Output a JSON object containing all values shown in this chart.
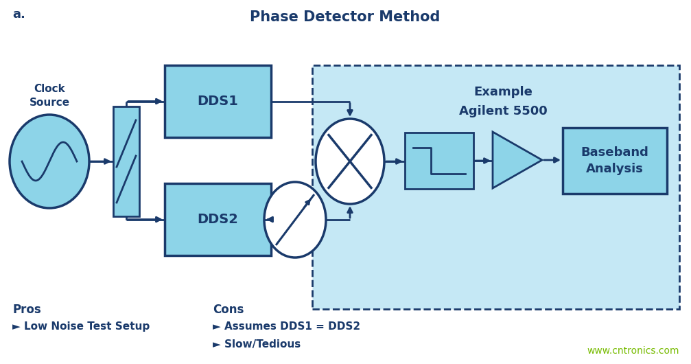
{
  "title": "Phase Detector Method",
  "label_a": "a.",
  "bg_color": "#ffffff",
  "box_fill_dark": "#4a9fc0",
  "box_fill_light": "#8dd4e8",
  "dashed_bg": "#c5e8f5",
  "box_border": "#1a3a6b",
  "arrow_color": "#1a3a6b",
  "text_dark": "#1a3a6b",
  "text_white": "#ffffff",
  "website_color": "#77bb00",
  "website_text": "www.cntronics.com",
  "pros_header": "Pros",
  "pros_items": [
    "► Low Noise Test Setup"
  ],
  "cons_header": "Cons",
  "cons_items": [
    "► Assumes DDS1 = DDS2",
    "► Slow/Tedious"
  ],
  "clock_label": [
    "Clock",
    "Source"
  ],
  "dds1_label": "DDS1",
  "dds2_label": "DDS2",
  "bb_label": [
    "Baseband",
    "Analysis"
  ],
  "example_label": [
    "Example",
    "Agilent 5500"
  ]
}
